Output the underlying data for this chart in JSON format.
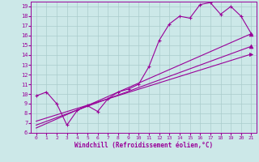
{
  "xlabel": "Windchill (Refroidissement éolien,°C)",
  "ylabel": "",
  "xlim": [
    -0.5,
    21.5
  ],
  "ylim": [
    6,
    19.5
  ],
  "xticks": [
    0,
    1,
    2,
    3,
    4,
    5,
    6,
    7,
    8,
    9,
    10,
    11,
    12,
    13,
    14,
    15,
    16,
    17,
    18,
    19,
    20,
    21
  ],
  "yticks": [
    6,
    7,
    8,
    9,
    10,
    11,
    12,
    13,
    14,
    15,
    16,
    17,
    18,
    19
  ],
  "bg_color": "#cce8e8",
  "grid_color": "#aacccc",
  "line_color": "#990099",
  "line1_x": [
    0,
    1,
    2,
    3,
    4,
    5,
    6,
    7,
    8,
    9,
    10,
    11,
    12,
    13,
    14,
    15,
    16,
    17,
    18,
    19,
    20,
    21
  ],
  "line1_y": [
    9.8,
    10.2,
    9.0,
    6.8,
    8.3,
    8.8,
    8.2,
    9.5,
    10.2,
    10.5,
    11.0,
    12.8,
    15.5,
    17.2,
    18.0,
    17.8,
    19.2,
    19.4,
    18.2,
    19.0,
    18.0,
    16.2
  ],
  "line2_x": [
    0,
    21
  ],
  "line2_y": [
    6.5,
    16.2
  ],
  "line3_x": [
    0,
    21
  ],
  "line3_y": [
    6.8,
    14.9
  ],
  "line4_x": [
    0,
    21
  ],
  "line4_y": [
    7.2,
    14.1
  ],
  "tri2_x": 21,
  "tri2_y": 16.2,
  "tri3_x": 21,
  "tri3_y": 14.9,
  "tri4_x": 21,
  "tri4_y": 14.1
}
